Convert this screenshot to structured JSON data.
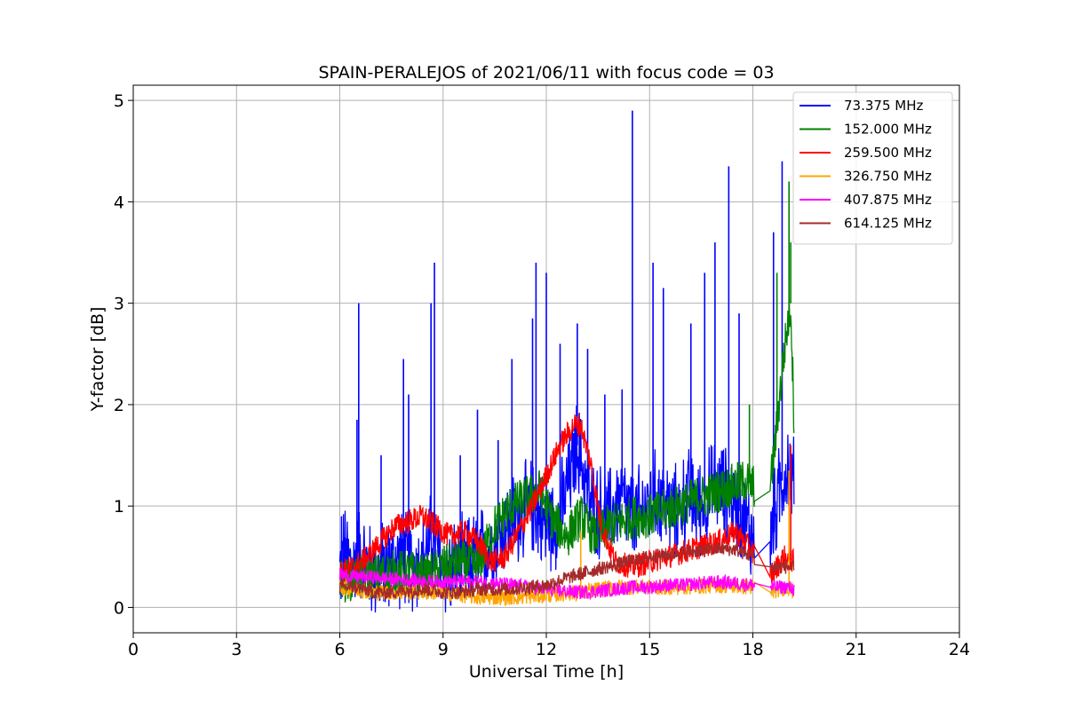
{
  "chart_data": {
    "type": "line",
    "title": "SPAIN-PERALEJOS of 2021/06/11 with focus code = 03",
    "xlabel": "Universal Time [h]",
    "ylabel": "Y-factor [dB]",
    "xlim": [
      0,
      24
    ],
    "ylim": [
      -0.25,
      5.15
    ],
    "x_ticks": [
      0,
      3,
      6,
      9,
      12,
      15,
      18,
      21,
      24
    ],
    "y_ticks": [
      0,
      1,
      2,
      3,
      4,
      5
    ],
    "grid": true,
    "legend_position": "top-right",
    "series": [
      {
        "name": "73.375 MHz",
        "color": "#0000ff",
        "x": [
          6.0,
          6.1,
          6.4,
          6.5,
          7.0,
          7.5,
          7.8,
          8.3,
          8.7,
          9.0,
          9.5,
          10.0,
          10.4,
          10.8,
          11.2,
          11.6,
          12.0,
          12.4,
          12.9,
          13.3,
          13.8,
          14.2,
          14.5,
          14.9,
          15.3,
          15.7,
          16.1,
          16.5,
          16.9,
          17.3,
          17.7,
          18.0,
          18.5,
          18.8,
          19.0,
          19.2
        ],
        "y": [
          0.35,
          0.55,
          0.4,
          0.6,
          0.3,
          0.45,
          0.5,
          0.4,
          0.7,
          0.35,
          0.4,
          0.5,
          0.6,
          0.8,
          0.9,
          1.0,
          0.8,
          0.9,
          1.6,
          1.0,
          0.9,
          1.1,
          0.85,
          1.0,
          1.1,
          0.9,
          1.1,
          1.0,
          1.2,
          1.1,
          0.9,
          0.7,
          0.65,
          1.2,
          1.4,
          1.2
        ],
        "spikes": [
          [
            6.05,
            0.9
          ],
          [
            6.5,
            1.85
          ],
          [
            6.55,
            3.0
          ],
          [
            7.2,
            1.5
          ],
          [
            7.85,
            2.45
          ],
          [
            8.0,
            2.1
          ],
          [
            8.65,
            3.0
          ],
          [
            8.75,
            3.4
          ],
          [
            9.5,
            1.5
          ],
          [
            10.0,
            1.95
          ],
          [
            10.6,
            1.65
          ],
          [
            11.0,
            2.45
          ],
          [
            11.6,
            2.85
          ],
          [
            11.7,
            3.4
          ],
          [
            12.0,
            3.3
          ],
          [
            12.4,
            2.6
          ],
          [
            12.9,
            2.8
          ],
          [
            13.2,
            2.55
          ],
          [
            13.7,
            2.1
          ],
          [
            14.2,
            2.15
          ],
          [
            14.5,
            4.9
          ],
          [
            15.1,
            3.4
          ],
          [
            15.4,
            3.15
          ],
          [
            16.2,
            2.8
          ],
          [
            16.6,
            3.3
          ],
          [
            16.9,
            3.6
          ],
          [
            17.3,
            4.35
          ],
          [
            17.6,
            2.9
          ],
          [
            18.6,
            3.7
          ],
          [
            18.85,
            4.4
          ]
        ]
      },
      {
        "name": "152.000 MHz",
        "color": "#008000",
        "x": [
          6.0,
          6.5,
          7.0,
          7.5,
          8.0,
          8.5,
          9.0,
          9.5,
          10.0,
          10.5,
          11.0,
          11.5,
          11.8,
          12.2,
          12.6,
          13.0,
          13.4,
          13.8,
          14.2,
          14.6,
          15.0,
          15.4,
          15.8,
          16.2,
          16.6,
          17.0,
          17.4,
          17.8,
          18.0,
          18.5,
          18.7,
          18.9,
          19.1,
          19.2
        ],
        "y": [
          0.25,
          0.3,
          0.3,
          0.35,
          0.35,
          0.3,
          0.4,
          0.45,
          0.4,
          0.8,
          1.0,
          1.1,
          1.15,
          0.85,
          0.7,
          0.9,
          0.7,
          0.8,
          0.85,
          0.9,
          0.9,
          0.95,
          1.0,
          1.05,
          1.1,
          1.15,
          1.2,
          1.25,
          1.2,
          1.15,
          1.8,
          2.5,
          3.0,
          1.8
        ],
        "spikes": [
          [
            17.9,
            2.0
          ],
          [
            18.7,
            3.3
          ],
          [
            19.05,
            4.2
          ],
          [
            19.1,
            3.6
          ]
        ]
      },
      {
        "name": "259.500 MHz",
        "color": "#ff0000",
        "x": [
          6.0,
          6.4,
          6.8,
          7.2,
          7.6,
          8.0,
          8.4,
          8.8,
          9.2,
          9.6,
          10.0,
          10.4,
          10.8,
          11.2,
          11.6,
          12.0,
          12.4,
          12.8,
          13.0,
          13.3,
          13.6,
          14.0,
          14.5,
          15.0,
          15.5,
          16.0,
          16.5,
          17.0,
          17.5,
          18.0,
          18.5,
          18.9,
          19.2
        ],
        "y": [
          0.35,
          0.4,
          0.5,
          0.65,
          0.8,
          0.85,
          0.9,
          0.8,
          0.7,
          0.75,
          0.65,
          0.45,
          0.5,
          0.75,
          1.0,
          1.3,
          1.6,
          1.8,
          1.8,
          1.4,
          0.8,
          0.45,
          0.4,
          0.45,
          0.5,
          0.55,
          0.6,
          0.65,
          0.75,
          0.55,
          0.3,
          0.5,
          0.45
        ],
        "spikes": [
          [
            19.1,
            1.6
          ]
        ]
      },
      {
        "name": "326.750 MHz",
        "color": "#ffa500",
        "x": [
          6.0,
          7.0,
          8.0,
          9.0,
          10.0,
          11.0,
          12.0,
          13.0,
          14.0,
          15.0,
          16.0,
          17.0,
          18.0,
          18.5,
          19.0,
          19.2
        ],
        "y": [
          0.2,
          0.15,
          0.15,
          0.15,
          0.1,
          0.1,
          0.12,
          0.15,
          0.2,
          0.2,
          0.2,
          0.22,
          0.2,
          0.15,
          0.2,
          0.15
        ],
        "spikes": [
          [
            13.0,
            0.75
          ],
          [
            19.05,
            1.35
          ]
        ]
      },
      {
        "name": "407.875 MHz",
        "color": "#ff00ff",
        "x": [
          6.0,
          6.5,
          7.0,
          7.5,
          8.0,
          8.5,
          9.0,
          9.5,
          10.0,
          10.5,
          11.0,
          11.5,
          12.0,
          12.5,
          13.0,
          13.5,
          14.0,
          14.5,
          15.0,
          15.5,
          16.0,
          16.5,
          17.0,
          17.5,
          18.0,
          18.5,
          19.0,
          19.2
        ],
        "y": [
          0.32,
          0.3,
          0.3,
          0.28,
          0.27,
          0.26,
          0.25,
          0.26,
          0.25,
          0.24,
          0.22,
          0.2,
          0.18,
          0.16,
          0.15,
          0.16,
          0.18,
          0.2,
          0.2,
          0.22,
          0.22,
          0.24,
          0.25,
          0.24,
          0.22,
          0.2,
          0.2,
          0.18
        ],
        "spikes": []
      },
      {
        "name": "614.125 MHz",
        "color": "#a52a2a",
        "x": [
          6.0,
          6.5,
          7.0,
          7.5,
          8.0,
          8.5,
          9.0,
          9.5,
          10.0,
          10.5,
          11.0,
          11.5,
          12.0,
          12.5,
          13.0,
          13.5,
          14.0,
          14.5,
          15.0,
          15.5,
          16.0,
          16.5,
          17.0,
          17.5,
          18.0,
          18.5,
          19.0,
          19.2
        ],
        "y": [
          0.2,
          0.2,
          0.15,
          0.15,
          0.17,
          0.18,
          0.15,
          0.15,
          0.18,
          0.18,
          0.18,
          0.2,
          0.22,
          0.28,
          0.33,
          0.38,
          0.42,
          0.46,
          0.5,
          0.52,
          0.55,
          0.56,
          0.58,
          0.57,
          0.5,
          0.4,
          0.4,
          0.38
        ],
        "spikes": []
      }
    ]
  }
}
